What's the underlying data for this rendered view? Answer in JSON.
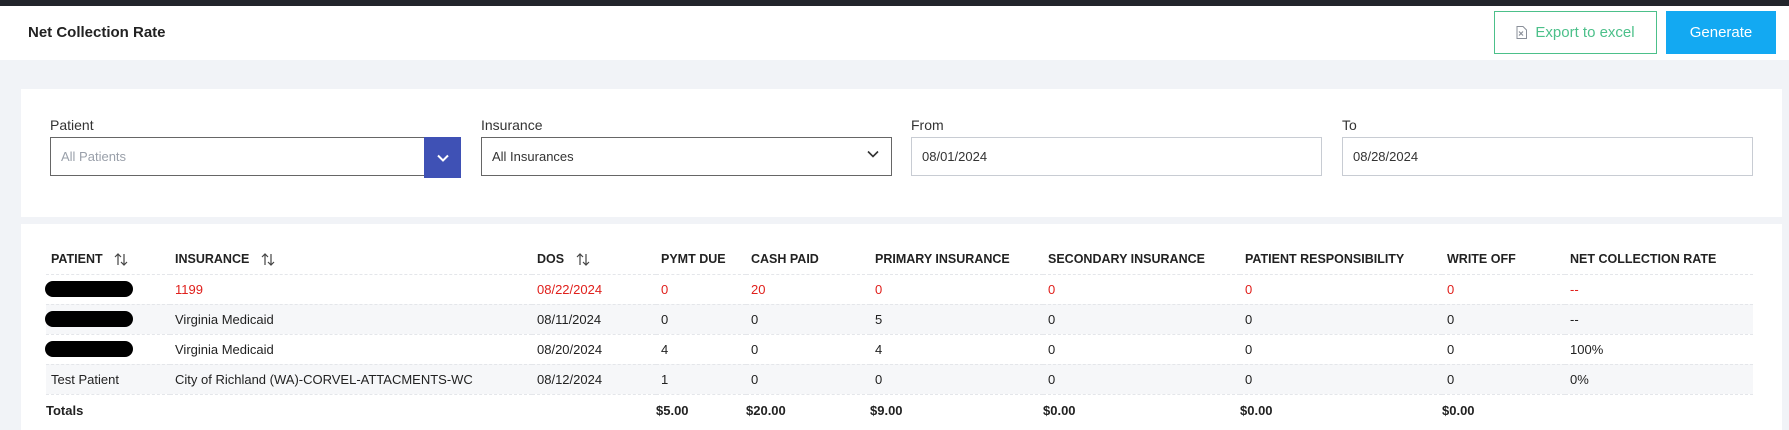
{
  "header": {
    "title": "Net Collection Rate",
    "export_label": "Export to excel",
    "generate_label": "Generate"
  },
  "filters": {
    "patient": {
      "label": "Patient",
      "placeholder": "All Patients"
    },
    "insurance": {
      "label": "Insurance",
      "value": "All Insurances"
    },
    "from": {
      "label": "From",
      "value": "08/01/2024"
    },
    "to": {
      "label": "To",
      "value": "08/28/2024"
    }
  },
  "table": {
    "columns": [
      "PATIENT",
      "INSURANCE",
      "DOS",
      "PYMT DUE",
      "CASH PAID",
      "PRIMARY INSURANCE",
      "SECONDARY INSURANCE",
      "PATIENT RESPONSIBILITY",
      "WRITE OFF",
      "NET COLLECTION RATE"
    ],
    "rows": [
      {
        "patient": "",
        "insurance": "1199",
        "dos": "08/22/2024",
        "pymt_due": "0",
        "cash_paid": "20",
        "primary": "0",
        "secondary": "0",
        "patient_resp": "0",
        "write_off": "0",
        "ncr": "--"
      },
      {
        "patient": "",
        "insurance": "Virginia Medicaid",
        "dos": "08/11/2024",
        "pymt_due": "0",
        "cash_paid": "0",
        "primary": "5",
        "secondary": "0",
        "patient_resp": "0",
        "write_off": "0",
        "ncr": "--"
      },
      {
        "patient": "",
        "insurance": "Virginia Medicaid",
        "dos": "08/20/2024",
        "pymt_due": "4",
        "cash_paid": "0",
        "primary": "4",
        "secondary": "0",
        "patient_resp": "0",
        "write_off": "0",
        "ncr": "100%"
      },
      {
        "patient": "Test Patient",
        "insurance": "City of Richland (WA)-CORVEL-ATTACMENTS-WC",
        "dos": "08/12/2024",
        "pymt_due": "1",
        "cash_paid": "0",
        "primary": "0",
        "secondary": "0",
        "patient_resp": "0",
        "write_off": "0",
        "ncr": "0%"
      }
    ],
    "totals": {
      "label": "Totals",
      "pymt_due": "$5.00",
      "cash_paid": "$20.00",
      "primary": "$9.00",
      "secondary": "$0.00",
      "patient_resp": "$0.00",
      "write_off": "$0.00"
    }
  },
  "colors": {
    "accent_blue": "#13a9f2",
    "export_green": "#4cc08a",
    "dropdown_indigo": "#3f51b5",
    "negative_red": "#e0201c"
  }
}
